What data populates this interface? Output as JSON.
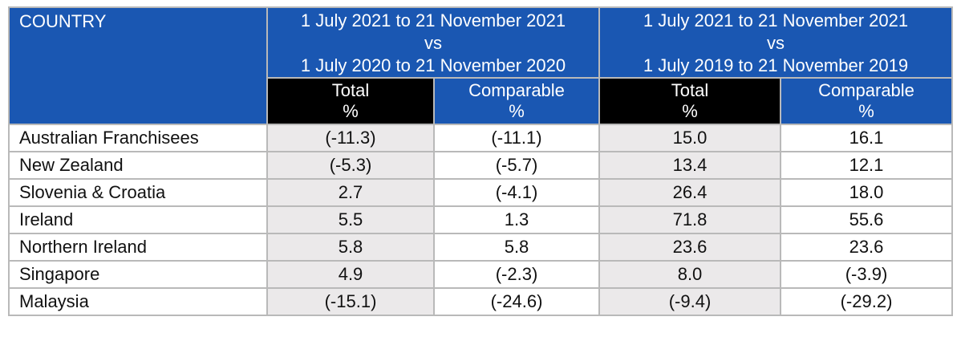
{
  "header": {
    "country_label": "COUNTRY",
    "period1": {
      "line1": "1 July 2021 to 21 November 2021",
      "line2": "vs",
      "line3": "1 July 2020 to 21 November 2020"
    },
    "period2": {
      "line1": "1 July 2021 to 21 November 2021",
      "line2": "vs",
      "line3": "1 July 2019 to 21 November 2019"
    },
    "sub": {
      "total": "Total",
      "comparable": "Comparable",
      "unit": "%"
    }
  },
  "rows": [
    {
      "country": "Australian Franchisees",
      "p1_total": "(-11.3)",
      "p1_comp": "(-11.1)",
      "p2_total": "15.0",
      "p2_comp": "16.1"
    },
    {
      "country": "New Zealand",
      "p1_total": "(-5.3)",
      "p1_comp": "(-5.7)",
      "p2_total": "13.4",
      "p2_comp": "12.1"
    },
    {
      "country": "Slovenia & Croatia",
      "p1_total": "2.7",
      "p1_comp": "(-4.1)",
      "p2_total": "26.4",
      "p2_comp": "18.0"
    },
    {
      "country": "Ireland",
      "p1_total": "5.5",
      "p1_comp": "1.3",
      "p2_total": "71.8",
      "p2_comp": "55.6"
    },
    {
      "country": "Northern Ireland",
      "p1_total": "5.8",
      "p1_comp": "5.8",
      "p2_total": "23.6",
      "p2_comp": "23.6"
    },
    {
      "country": "Singapore",
      "p1_total": "4.9",
      "p1_comp": "(-2.3)",
      "p2_total": "8.0",
      "p2_comp": "(-3.9)"
    },
    {
      "country": "Malaysia",
      "p1_total": "(-15.1)",
      "p1_comp": "(-24.6)",
      "p2_total": "(-9.4)",
      "p2_comp": "(-29.2)"
    }
  ],
  "colors": {
    "header_blue": "#1a57b2",
    "header_black": "#000000",
    "shade": "#ebe9ea",
    "border": "#b9b9b9"
  }
}
